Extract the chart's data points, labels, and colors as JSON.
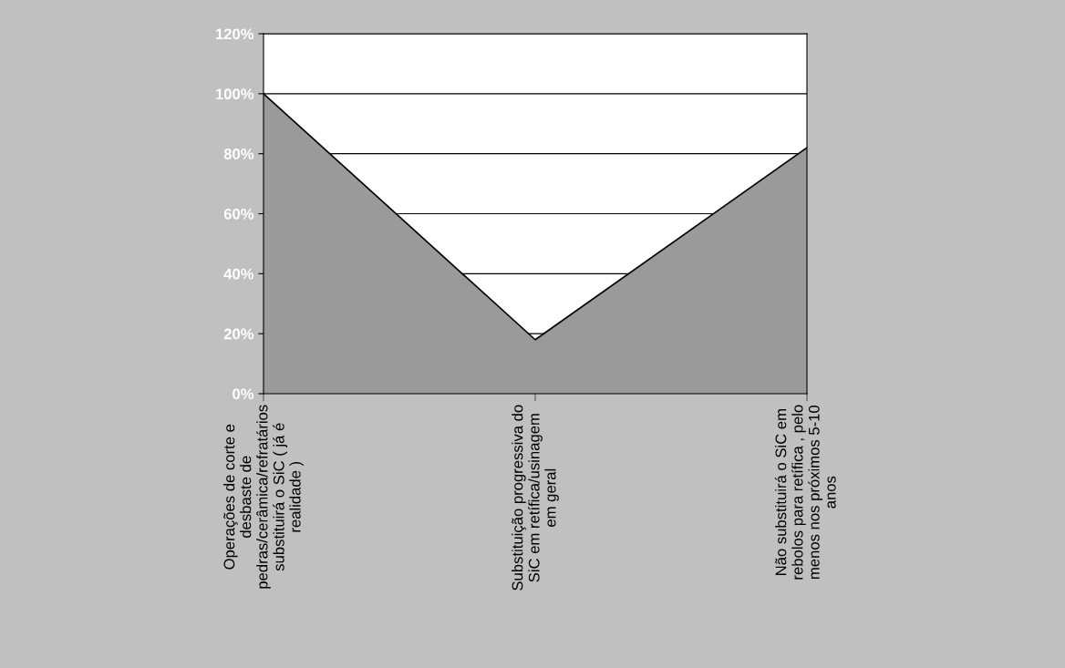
{
  "chart_data": {
    "type": "area",
    "categories": [
      "Operações de corte e\ndesbaste de\npedras/cerâmica/refratários\nsubstituirá o SiC ( já é\nrealidade )",
      "Substituição progressiva do\nSiC em retífica/usinagem\nem geral",
      "Não substituirá o SiC em\nrebolos para retífica , pelo\nmenos nos próximos 5-10\nanos"
    ],
    "series": [
      {
        "color": "#9a9a9a",
        "values": [
          100,
          18,
          82
        ]
      }
    ],
    "ylim": [
      0,
      120
    ],
    "yticks": [
      {
        "value": 0,
        "label": "0%"
      },
      {
        "value": 20,
        "label": "20%"
      },
      {
        "value": 40,
        "label": "40%"
      },
      {
        "value": 60,
        "label": "60%"
      },
      {
        "value": 80,
        "label": "80%"
      },
      {
        "value": 100,
        "label": "100%"
      },
      {
        "value": 120,
        "label": "120%"
      }
    ],
    "grid": "y",
    "legend": false
  }
}
